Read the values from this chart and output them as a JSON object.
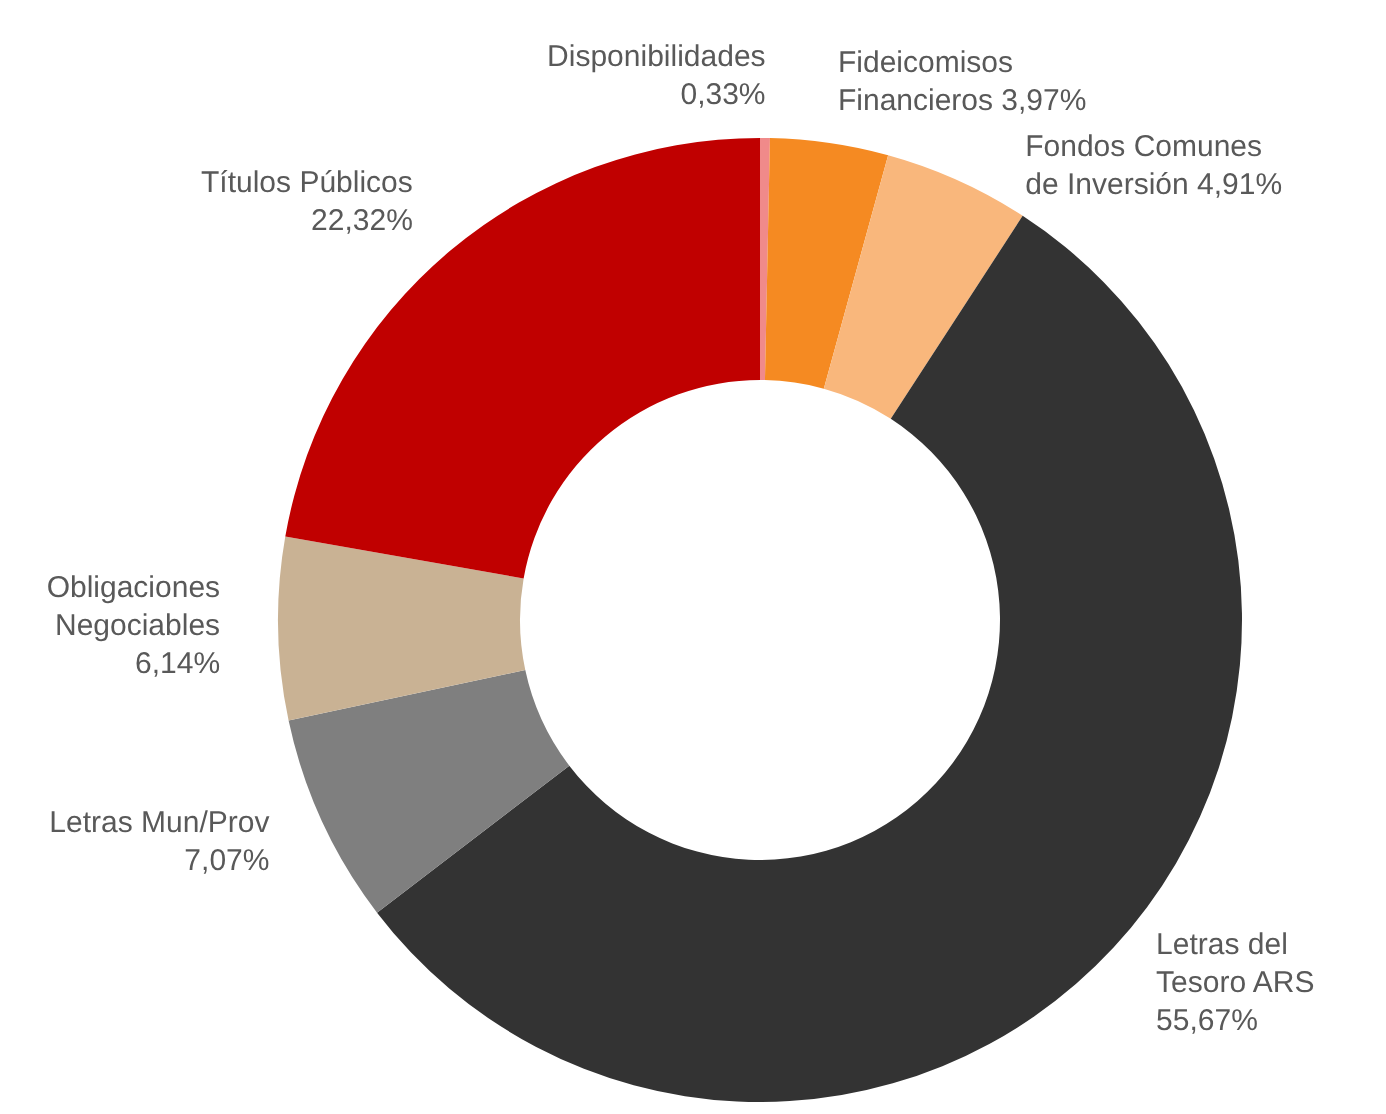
{
  "chart_data": {
    "type": "donut",
    "categories": [
      "Disponibilidades",
      "Fideicomisos Financieros",
      "Fondos Comunes de Inversión",
      "Letras del Tesoro ARS",
      "Letras Mun/Prov",
      "Obligaciones Negociables",
      "Títulos Públicos"
    ],
    "values": [
      0.33,
      3.97,
      4.91,
      55.67,
      7.07,
      6.14,
      22.32
    ],
    "value_labels": [
      "0,33%",
      "3,97%",
      "4,91%",
      "55,67%",
      "7,07%",
      "6,14%",
      "22,32%"
    ],
    "colors": [
      "#f08a8a",
      "#f58a22",
      "#f9b77c",
      "#333333",
      "#7f7f7f",
      "#c9b294",
      "#c00000"
    ]
  }
}
